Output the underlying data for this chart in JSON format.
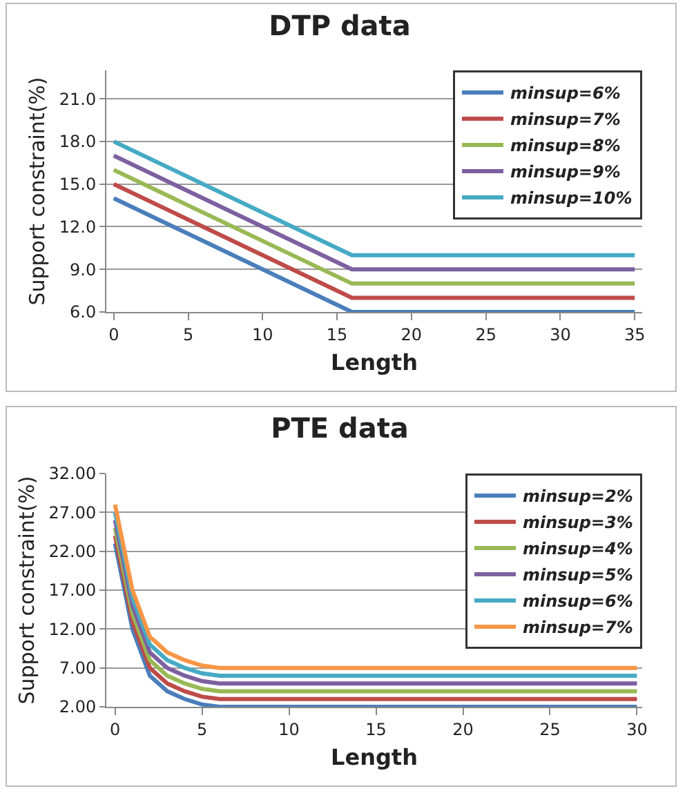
{
  "chart_data": [
    {
      "type": "line",
      "title": "DTP data",
      "xlabel": "Length",
      "ylabel": "Support constraint(%)",
      "x": [
        0,
        16,
        35
      ],
      "xlim": [
        -0.5,
        35.5
      ],
      "xticks": [
        0,
        5,
        10,
        15,
        20,
        25,
        30,
        35
      ],
      "ylim": [
        6,
        23
      ],
      "yticks": [
        {
          "value": 6,
          "label": "6.0"
        },
        {
          "value": 9,
          "label": "9.0"
        },
        {
          "value": 12,
          "label": "12.0"
        },
        {
          "value": 15,
          "label": "15.0"
        },
        {
          "value": 18,
          "label": "18.0"
        },
        {
          "value": 21,
          "label": "21.0"
        }
      ],
      "grid": "y",
      "legend": "top right",
      "marker": "none",
      "line_style": "solid",
      "series": [
        {
          "name": "minsup=6%",
          "color": "#4a7ebb",
          "values": [
            14,
            6,
            6
          ]
        },
        {
          "name": "minsup=7%",
          "color": "#be4b48",
          "values": [
            15,
            7,
            7
          ]
        },
        {
          "name": "minsup=8%",
          "color": "#98b954",
          "values": [
            16,
            8,
            8
          ]
        },
        {
          "name": "minsup=9%",
          "color": "#7d60a0",
          "values": [
            17,
            9,
            9
          ]
        },
        {
          "name": "minsup=10%",
          "color": "#46aac5",
          "values": [
            18,
            10,
            10
          ]
        }
      ]
    },
    {
      "type": "line",
      "title": "PTE data",
      "xlabel": "Length",
      "ylabel": "Support constraint(%)",
      "x": [
        0,
        1,
        2,
        3,
        4,
        5,
        6,
        30
      ],
      "xlim": [
        -0.5,
        30.3
      ],
      "xticks": [
        0,
        5,
        10,
        15,
        20,
        25,
        30
      ],
      "ylim": [
        2,
        32
      ],
      "yticks": [
        {
          "value": 2,
          "label": "2.00"
        },
        {
          "value": 7,
          "label": "7.00"
        },
        {
          "value": 12,
          "label": "12.00"
        },
        {
          "value": 17,
          "label": "17.00"
        },
        {
          "value": 22,
          "label": "22.00"
        },
        {
          "value": 27,
          "label": "27.00"
        },
        {
          "value": 32,
          "label": "32.00"
        }
      ],
      "grid": "y",
      "legend": "top right",
      "marker": "none",
      "line_style": "solid",
      "series": [
        {
          "name": "minsup=2%",
          "color": "#4a7ebb",
          "values": [
            23,
            12,
            6,
            4,
            3,
            2.3,
            2,
            2
          ]
        },
        {
          "name": "minsup=3%",
          "color": "#be4b48",
          "values": [
            24,
            13,
            7,
            5,
            4,
            3.3,
            3,
            3
          ]
        },
        {
          "name": "minsup=4%",
          "color": "#98b954",
          "values": [
            25,
            14,
            8,
            6,
            5,
            4.3,
            4,
            4
          ]
        },
        {
          "name": "minsup=5%",
          "color": "#7d60a0",
          "values": [
            26,
            15,
            9,
            7,
            6,
            5.3,
            5,
            5
          ]
        },
        {
          "name": "minsup=6%",
          "color": "#46aac5",
          "values": [
            27,
            16,
            10,
            8,
            7,
            6.3,
            6,
            6
          ]
        },
        {
          "name": "minsup=7%",
          "color": "#f79646",
          "values": [
            28,
            17,
            11,
            9,
            8,
            7.3,
            7,
            7
          ]
        }
      ]
    }
  ]
}
